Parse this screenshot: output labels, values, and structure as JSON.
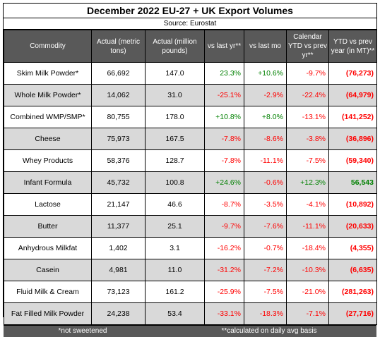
{
  "title": "December 2022 EU-27 + UK Export Volumes",
  "source": "Source:  Eurostat",
  "headers": [
    "Commodity",
    "Actual (metric tons)",
    "Actual (million pounds)",
    "vs last yr**",
    "vs last mo",
    "Calendar YTD vs prev yr**",
    "YTD vs prev year (in MT)**"
  ],
  "rows": [
    {
      "name": "Skim Milk Powder*",
      "mt": "66,692",
      "mlb": "147.0",
      "vsyr": "23.3%",
      "vsmo": "+10.6%",
      "ytd": "-9.7%",
      "ytdmt": "(76,273)",
      "shade": false,
      "colors": {
        "vsyr": "green",
        "vsmo": "green",
        "ytd": "red",
        "ytdmt": "red"
      }
    },
    {
      "name": "Whole Milk Powder*",
      "mt": "14,062",
      "mlb": "31.0",
      "vsyr": "-25.1%",
      "vsmo": "-2.9%",
      "ytd": "-22.4%",
      "ytdmt": "(64,979)",
      "shade": true,
      "colors": {
        "vsyr": "red",
        "vsmo": "red",
        "ytd": "red",
        "ytdmt": "red"
      }
    },
    {
      "name": "Combined WMP/SMP*",
      "mt": "80,755",
      "mlb": "178.0",
      "vsyr": "+10.8%",
      "vsmo": "+8.0%",
      "ytd": "-13.1%",
      "ytdmt": "(141,252)",
      "shade": false,
      "colors": {
        "vsyr": "green",
        "vsmo": "green",
        "ytd": "red",
        "ytdmt": "red"
      }
    },
    {
      "name": "Cheese",
      "mt": "75,973",
      "mlb": "167.5",
      "vsyr": "-7.8%",
      "vsmo": "-8.6%",
      "ytd": "-3.8%",
      "ytdmt": "(36,896)",
      "shade": true,
      "colors": {
        "vsyr": "red",
        "vsmo": "red",
        "ytd": "red",
        "ytdmt": "red"
      }
    },
    {
      "name": "Whey Products",
      "mt": "58,376",
      "mlb": "128.7",
      "vsyr": "-7.8%",
      "vsmo": "-11.1%",
      "ytd": "-7.5%",
      "ytdmt": "(59,340)",
      "shade": false,
      "colors": {
        "vsyr": "red",
        "vsmo": "red",
        "ytd": "red",
        "ytdmt": "red"
      }
    },
    {
      "name": "Infant Formula",
      "mt": "45,732",
      "mlb": "100.8",
      "vsyr": "+24.6%",
      "vsmo": "-0.6%",
      "ytd": "+12.3%",
      "ytdmt": "56,543",
      "shade": true,
      "colors": {
        "vsyr": "green",
        "vsmo": "red",
        "ytd": "green",
        "ytdmt": "green"
      }
    },
    {
      "name": "Lactose",
      "mt": "21,147",
      "mlb": "46.6",
      "vsyr": "-8.7%",
      "vsmo": "-3.5%",
      "ytd": "-4.1%",
      "ytdmt": "(10,892)",
      "shade": false,
      "colors": {
        "vsyr": "red",
        "vsmo": "red",
        "ytd": "red",
        "ytdmt": "red"
      }
    },
    {
      "name": "Butter",
      "mt": "11,377",
      "mlb": "25.1",
      "vsyr": "-9.7%",
      "vsmo": "-7.6%",
      "ytd": "-11.1%",
      "ytdmt": "(20,633)",
      "shade": true,
      "colors": {
        "vsyr": "red",
        "vsmo": "red",
        "ytd": "red",
        "ytdmt": "red"
      }
    },
    {
      "name": "Anhydrous Milkfat",
      "mt": "1,402",
      "mlb": "3.1",
      "vsyr": "-16.2%",
      "vsmo": "-0.7%",
      "ytd": "-18.4%",
      "ytdmt": "(4,355)",
      "shade": false,
      "colors": {
        "vsyr": "red",
        "vsmo": "red",
        "ytd": "red",
        "ytdmt": "red"
      }
    },
    {
      "name": "Casein",
      "mt": "4,981",
      "mlb": "11.0",
      "vsyr": "-31.2%",
      "vsmo": "-7.2%",
      "ytd": "-10.3%",
      "ytdmt": "(6,635)",
      "shade": true,
      "colors": {
        "vsyr": "red",
        "vsmo": "red",
        "ytd": "red",
        "ytdmt": "red"
      }
    },
    {
      "name": "Fluid Milk & Cream",
      "mt": "73,123",
      "mlb": "161.2",
      "vsyr": "-25.9%",
      "vsmo": "-7.5%",
      "ytd": "-21.0%",
      "ytdmt": "(281,263)",
      "shade": false,
      "colors": {
        "vsyr": "red",
        "vsmo": "red",
        "ytd": "red",
        "ytdmt": "red"
      }
    },
    {
      "name": "Fat Filled Milk Powder",
      "mt": "24,238",
      "mlb": "53.4",
      "vsyr": "-33.1%",
      "vsmo": "-18.3%",
      "ytd": "-7.1%",
      "ytdmt": "(27,716)",
      "shade": true,
      "colors": {
        "vsyr": "red",
        "vsmo": "red",
        "ytd": "red",
        "ytdmt": "red"
      }
    }
  ],
  "footnotes": {
    "left": "*not sweetened",
    "right": "**calculated on daily avg basis"
  },
  "colors": {
    "header_bg": "#595959",
    "shade_bg": "#d9d9d9",
    "positive": "#008000",
    "negative": "#ff0000"
  }
}
